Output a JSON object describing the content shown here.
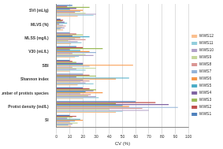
{
  "chart_data": {
    "type": "bar",
    "orientation": "horizontal",
    "xlabel": "CV (%)",
    "categories": [
      "SVI (mL/g)",
      "MLVS (%)",
      "MLSS (mg/L)",
      "V30 (mL/L)",
      "SBI",
      "Shannon index",
      "Number of protists species",
      "Protist density (ind/L)",
      "SI"
    ],
    "series": [
      {
        "name": "WWS1",
        "color": "#4f81bd",
        "values": [
          12,
          3,
          10,
          15,
          10,
          20,
          20,
          60,
          10
        ]
      },
      {
        "name": "WWS2",
        "color": "#c0504d",
        "values": [
          8,
          5,
          15,
          20,
          12,
          25,
          25,
          75,
          15
        ]
      },
      {
        "name": "WWS3",
        "color": "#9bbb59",
        "values": [
          25,
          4,
          20,
          35,
          15,
          30,
          30,
          45,
          12
        ]
      },
      {
        "name": "WWS4",
        "color": "#8064a2",
        "values": [
          15,
          6,
          12,
          10,
          20,
          15,
          28,
          85,
          8
        ]
      },
      {
        "name": "WWS5",
        "color": "#4bacc6",
        "values": [
          10,
          8,
          25,
          18,
          20,
          55,
          22,
          50,
          18
        ]
      },
      {
        "name": "WWS6",
        "color": "#f79646",
        "values": [
          20,
          2,
          18,
          25,
          58,
          45,
          35,
          55,
          20
        ]
      },
      {
        "name": "WWS7",
        "color": "#95b3d7",
        "values": [
          18,
          5,
          14,
          30,
          25,
          20,
          18,
          92,
          14
        ]
      },
      {
        "name": "WWS8",
        "color": "#da9694",
        "values": [
          14,
          7,
          22,
          12,
          12,
          25,
          26,
          65,
          10
        ]
      },
      {
        "name": "WWS9",
        "color": "#c4d79b",
        "values": [
          22,
          4,
          9,
          22,
          30,
          18,
          24,
          40,
          16
        ]
      },
      {
        "name": "WWS10",
        "color": "#b1a0c7",
        "values": [
          30,
          6,
          16,
          28,
          15,
          22,
          30,
          70,
          12
        ]
      },
      {
        "name": "WWS11",
        "color": "#92cddc",
        "values": [
          28,
          3,
          19,
          17,
          22,
          28,
          32,
          50,
          9
        ]
      },
      {
        "name": "WWS12",
        "color": "#fabf8f",
        "values": [
          16,
          5,
          11,
          14,
          10,
          16,
          20,
          45,
          11
        ]
      }
    ],
    "xlim": [
      0,
      100
    ],
    "xticks": [
      0,
      10,
      20,
      30,
      40,
      50,
      60,
      70,
      80,
      90,
      100
    ],
    "grid": true,
    "legend": "right"
  }
}
